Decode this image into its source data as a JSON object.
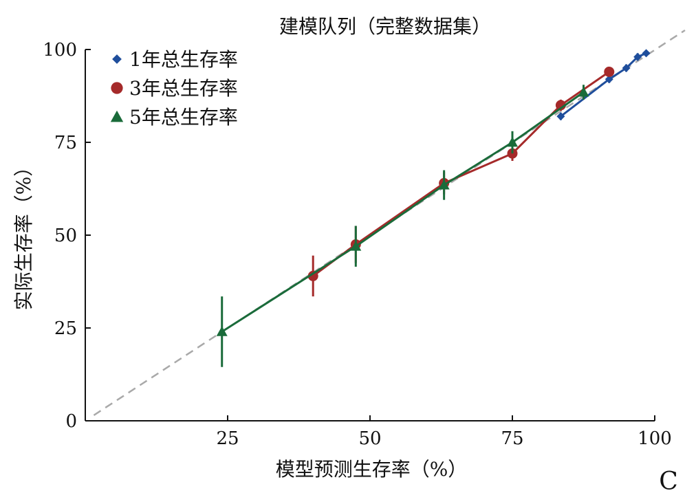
{
  "chart_data": {
    "type": "line",
    "title": "建模队列（完整数据集）",
    "xlabel": "模型预测生存率（%）",
    "ylabel": "实际生存率（%）",
    "panel_label": "C",
    "xlim": [
      0,
      100
    ],
    "ylim": [
      0,
      100
    ],
    "xticks": [
      25,
      50,
      75,
      100
    ],
    "yticks": [
      0,
      25,
      50,
      75,
      100
    ],
    "legend_position": "top-left",
    "reference_line": {
      "style": "dashed",
      "color": "#a9a9a9",
      "from": [
        1.5,
        1.5
      ],
      "to": [
        100,
        100
      ]
    },
    "series": [
      {
        "name": "1年总生存率",
        "marker": "diamond",
        "color": "#1f4e9c",
        "x": [
          83.5,
          92.0,
          95.0,
          97.0,
          98.5
        ],
        "y": [
          82.0,
          92.0,
          95.0,
          98.0,
          99.0
        ],
        "err": [
          1.0,
          1.0,
          1.0,
          1.0,
          0.8
        ]
      },
      {
        "name": "3年总生存率",
        "marker": "circle",
        "color": "#a52a2a",
        "x": [
          40.0,
          47.5,
          63.0,
          75.0,
          83.5,
          92.0
        ],
        "y": [
          39.0,
          47.5,
          64.0,
          72.0,
          85.0,
          94.0
        ],
        "err": [
          5.5,
          5.0,
          3.0,
          2.0,
          1.5,
          0.8
        ]
      },
      {
        "name": "5年总生存率",
        "marker": "triangle",
        "color": "#1a6b3a",
        "x": [
          24.0,
          47.5,
          63.0,
          75.0,
          87.5
        ],
        "y": [
          24.0,
          47.0,
          63.5,
          75.0,
          88.5
        ],
        "err": [
          9.5,
          5.5,
          4.0,
          3.0,
          2.0
        ]
      }
    ]
  }
}
